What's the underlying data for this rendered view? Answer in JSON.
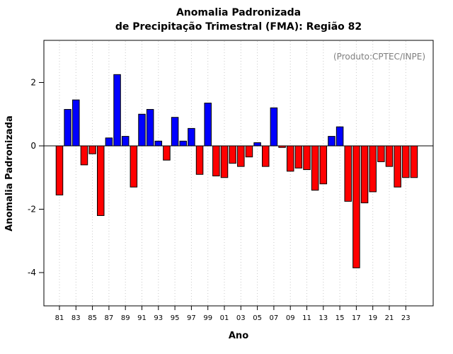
{
  "header": {
    "title_line1": "Anomalia Padronizada",
    "title_line2": "de Precipitação Trimestral (FMA): Região 82"
  },
  "annotation": {
    "text": "(Produto:CPTEC/INPE)",
    "color": "#7f7f7f"
  },
  "axes": {
    "x_label": "Ano",
    "y_label": "Anomalia Padronizada"
  },
  "chart_data": {
    "type": "bar",
    "title": "Anomalia Padronizada de Precipitação Trimestral (FMA): Região 82",
    "xlabel": "Ano",
    "ylabel": "Anomalia Padronizada",
    "years": [
      1981,
      1982,
      1983,
      1984,
      1985,
      1986,
      1987,
      1988,
      1989,
      1990,
      1991,
      1992,
      1993,
      1994,
      1995,
      1996,
      1997,
      1998,
      1999,
      2000,
      2001,
      2002,
      2003,
      2004,
      2005,
      2006,
      2007,
      2008,
      2009,
      2010,
      2011,
      2012,
      2013,
      2014,
      2015,
      2016,
      2017,
      2018,
      2019,
      2020,
      2021,
      2022,
      2023,
      2024
    ],
    "values": [
      -1.55,
      1.15,
      1.45,
      -0.6,
      -0.25,
      -2.2,
      0.25,
      2.25,
      0.3,
      -1.3,
      1.0,
      1.15,
      0.15,
      -0.45,
      0.9,
      0.15,
      0.55,
      -0.9,
      1.35,
      -0.95,
      -1.0,
      -0.55,
      -0.65,
      -0.35,
      0.1,
      -0.65,
      1.2,
      -0.05,
      -0.8,
      -0.7,
      -0.75,
      -1.4,
      -1.2,
      0.3,
      0.6,
      -1.75,
      -3.85,
      -1.8,
      -1.45,
      -0.5,
      -0.65,
      -1.3,
      -1.0,
      -1.0
    ],
    "x_tick_labels": [
      "81",
      "83",
      "85",
      "87",
      "89",
      "91",
      "93",
      "95",
      "97",
      "99",
      "01",
      "03",
      "05",
      "07",
      "09",
      "11",
      "13",
      "15",
      "17",
      "19",
      "21",
      "23"
    ],
    "y_tick_values": [
      -4,
      -2,
      0,
      2
    ],
    "ylim": [
      -5.05,
      3.33
    ],
    "grid": "dotted-vertical-at-ticks",
    "legend": "none",
    "colors": {
      "positive": "#0000ff",
      "negative": "#ff0000",
      "bar_border": "#000000",
      "grid": "#c8c8c8",
      "zero_line": "#000000",
      "box": "#000000"
    }
  }
}
